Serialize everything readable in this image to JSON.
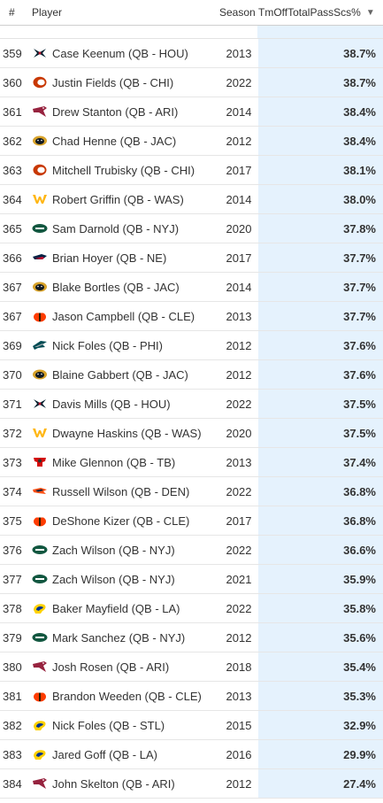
{
  "header": {
    "rank": "#",
    "player": "Player",
    "season": "Season",
    "metric": "TmOffTotalPassScs%",
    "sort_icon": "caret-down-icon"
  },
  "rows": [
    {
      "rank": "359",
      "player": "Case Keenum (QB - HOU)",
      "team": "HOU",
      "season": "2013",
      "value": "38.7%"
    },
    {
      "rank": "360",
      "player": "Justin Fields (QB - CHI)",
      "team": "CHI",
      "season": "2022",
      "value": "38.7%"
    },
    {
      "rank": "361",
      "player": "Drew Stanton (QB - ARI)",
      "team": "ARI",
      "season": "2014",
      "value": "38.4%"
    },
    {
      "rank": "362",
      "player": "Chad Henne (QB - JAC)",
      "team": "JAC",
      "season": "2012",
      "value": "38.4%"
    },
    {
      "rank": "363",
      "player": "Mitchell Trubisky (QB - CHI)",
      "team": "CHI",
      "season": "2017",
      "value": "38.1%"
    },
    {
      "rank": "364",
      "player": "Robert Griffin (QB - WAS)",
      "team": "WAS",
      "season": "2014",
      "value": "38.0%"
    },
    {
      "rank": "365",
      "player": "Sam Darnold (QB - NYJ)",
      "team": "NYJ",
      "season": "2020",
      "value": "37.8%"
    },
    {
      "rank": "366",
      "player": "Brian Hoyer (QB - NE)",
      "team": "NE",
      "season": "2017",
      "value": "37.7%"
    },
    {
      "rank": "367",
      "player": "Blake Bortles (QB - JAC)",
      "team": "JAC",
      "season": "2014",
      "value": "37.7%"
    },
    {
      "rank": "367",
      "player": "Jason Campbell (QB - CLE)",
      "team": "CLE",
      "season": "2013",
      "value": "37.7%"
    },
    {
      "rank": "369",
      "player": "Nick Foles (QB - PHI)",
      "team": "PHI",
      "season": "2012",
      "value": "37.6%"
    },
    {
      "rank": "370",
      "player": "Blaine Gabbert (QB - JAC)",
      "team": "JAC",
      "season": "2012",
      "value": "37.6%"
    },
    {
      "rank": "371",
      "player": "Davis Mills (QB - HOU)",
      "team": "HOU",
      "season": "2022",
      "value": "37.5%"
    },
    {
      "rank": "372",
      "player": "Dwayne Haskins (QB - WAS)",
      "team": "WAS",
      "season": "2020",
      "value": "37.5%"
    },
    {
      "rank": "373",
      "player": "Mike Glennon (QB - TB)",
      "team": "TB",
      "season": "2013",
      "value": "37.4%"
    },
    {
      "rank": "374",
      "player": "Russell Wilson (QB - DEN)",
      "team": "DEN",
      "season": "2022",
      "value": "36.8%"
    },
    {
      "rank": "375",
      "player": "DeShone Kizer (QB - CLE)",
      "team": "CLE",
      "season": "2017",
      "value": "36.8%"
    },
    {
      "rank": "376",
      "player": "Zach Wilson (QB - NYJ)",
      "team": "NYJ",
      "season": "2022",
      "value": "36.6%"
    },
    {
      "rank": "377",
      "player": "Zach Wilson (QB - NYJ)",
      "team": "NYJ",
      "season": "2021",
      "value": "35.9%"
    },
    {
      "rank": "378",
      "player": "Baker Mayfield (QB - LA)",
      "team": "LA",
      "season": "2022",
      "value": "35.8%"
    },
    {
      "rank": "379",
      "player": "Mark Sanchez (QB - NYJ)",
      "team": "NYJ",
      "season": "2012",
      "value": "35.6%"
    },
    {
      "rank": "380",
      "player": "Josh Rosen (QB - ARI)",
      "team": "ARI",
      "season": "2018",
      "value": "35.4%"
    },
    {
      "rank": "381",
      "player": "Brandon Weeden (QB - CLE)",
      "team": "CLE",
      "season": "2013",
      "value": "35.3%"
    },
    {
      "rank": "382",
      "player": "Nick Foles (QB - STL)",
      "team": "STL",
      "season": "2015",
      "value": "32.9%"
    },
    {
      "rank": "383",
      "player": "Jared Goff (QB - LA)",
      "team": "LA",
      "season": "2016",
      "value": "29.9%"
    },
    {
      "rank": "384",
      "player": "John Skelton (QB - ARI)",
      "team": "ARI",
      "season": "2012",
      "value": "27.4%"
    }
  ],
  "colors": {
    "metric_bg": "#e5f2fd",
    "row_border": "#e6e6e6",
    "HOU": "#03202f",
    "HOU_accent": "#a71930",
    "CHI": "#c83803",
    "CHI_accent": "#0b162a",
    "ARI": "#97233f",
    "JAC": "#101820",
    "JAC_accent": "#d7a22a",
    "WAS": "#ffb612",
    "WAS_accent": "#5a1414",
    "NYJ": "#125740",
    "NE": "#002244",
    "NE_accent": "#c60c30",
    "CLE": "#ff3c00",
    "CLE_accent": "#311d00",
    "PHI": "#004c54",
    "TB": "#d50a0a",
    "TB_accent": "#34302b",
    "DEN": "#fb4f14",
    "DEN_accent": "#002244",
    "LA": "#003594",
    "LA_accent": "#ffd100",
    "STL": "#003594",
    "STL_accent": "#ffd100"
  }
}
